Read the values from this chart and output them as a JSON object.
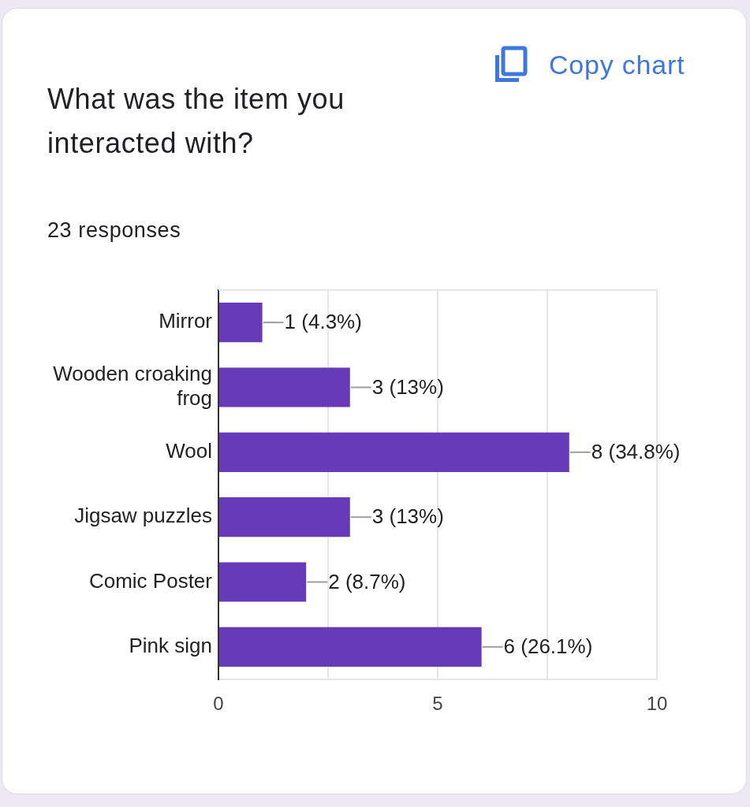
{
  "chart_data": {
    "type": "bar",
    "orientation": "horizontal",
    "title": "What was the item you interacted with?",
    "subtitle": "23 responses",
    "annotations": [
      "Copy chart"
    ],
    "categories": [
      "Mirror",
      "Wooden croaking frog",
      "Wool",
      "Jigsaw puzzles",
      "Comic Poster",
      "Pink sign"
    ],
    "values": [
      1,
      3,
      8,
      3,
      2,
      6
    ],
    "value_labels": [
      "1 (4.3%)",
      "3 (13%)",
      "8 (34.8%)",
      "3 (13%)",
      "2 (8.7%)",
      "6 (26.1%)"
    ],
    "color": "#673ab7",
    "xlim": [
      0,
      10
    ],
    "xticks": [
      0,
      {
        "value": 2.5,
        "label": null
      },
      5,
      {
        "value": 7.5,
        "label": null
      },
      10
    ],
    "grid": "x"
  }
}
